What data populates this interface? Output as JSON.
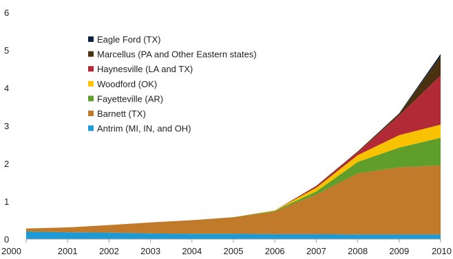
{
  "chart_data": {
    "type": "area",
    "stacked": true,
    "title": "",
    "xlabel": "",
    "ylabel": "",
    "x": [
      2000,
      2001,
      2002,
      2003,
      2004,
      2005,
      2006,
      2007,
      2008,
      2009,
      2010
    ],
    "x_tick_labels": [
      "2000",
      "2001",
      "2002",
      "2003",
      "2004",
      "2005",
      "2006",
      "2007",
      "2008",
      "2009",
      "2010"
    ],
    "ylim": [
      0,
      6
    ],
    "y_ticks": [
      0,
      1,
      2,
      3,
      4,
      5,
      6
    ],
    "y_tick_labels": [
      "0",
      "1",
      "2",
      "3",
      "4",
      "5",
      "6"
    ],
    "grid": false,
    "legend_position": "top-left",
    "series": [
      {
        "name": "Antrim (MI, IN, and OH)",
        "color": "#1c9ad6",
        "values": [
          0.2,
          0.18,
          0.17,
          0.15,
          0.14,
          0.14,
          0.13,
          0.13,
          0.12,
          0.12,
          0.12
        ]
      },
      {
        "name": "Barnett (TX)",
        "color": "#c07a2a",
        "values": [
          0.08,
          0.13,
          0.2,
          0.29,
          0.36,
          0.44,
          0.6,
          1.05,
          1.62,
          1.78,
          1.83
        ]
      },
      {
        "name": "Fayetteville (AR)",
        "color": "#5f9e2a",
        "values": [
          0,
          0,
          0,
          0,
          0,
          0,
          0.02,
          0.08,
          0.3,
          0.52,
          0.73
        ]
      },
      {
        "name": "Woodford (OK)",
        "color": "#f8c200",
        "values": [
          0,
          0,
          0,
          0,
          0,
          0,
          0.01,
          0.1,
          0.18,
          0.33,
          0.35
        ]
      },
      {
        "name": "Haynesville (LA and TX)",
        "color": "#b22a35",
        "values": [
          0,
          0,
          0,
          0,
          0,
          0,
          0,
          0.04,
          0.08,
          0.52,
          1.3
        ]
      },
      {
        "name": "Marcellus (PA and Other Eastern states)",
        "color": "#4a3210",
        "values": [
          0,
          0,
          0,
          0,
          0,
          0,
          0,
          0.01,
          0.02,
          0.05,
          0.5
        ]
      },
      {
        "name": "Eagle Ford (TX)",
        "color": "#0c2340",
        "values": [
          0,
          0,
          0,
          0,
          0,
          0,
          0,
          0,
          0,
          0.01,
          0.07
        ]
      }
    ],
    "legend_order": [
      6,
      5,
      4,
      3,
      2,
      1,
      0
    ]
  }
}
